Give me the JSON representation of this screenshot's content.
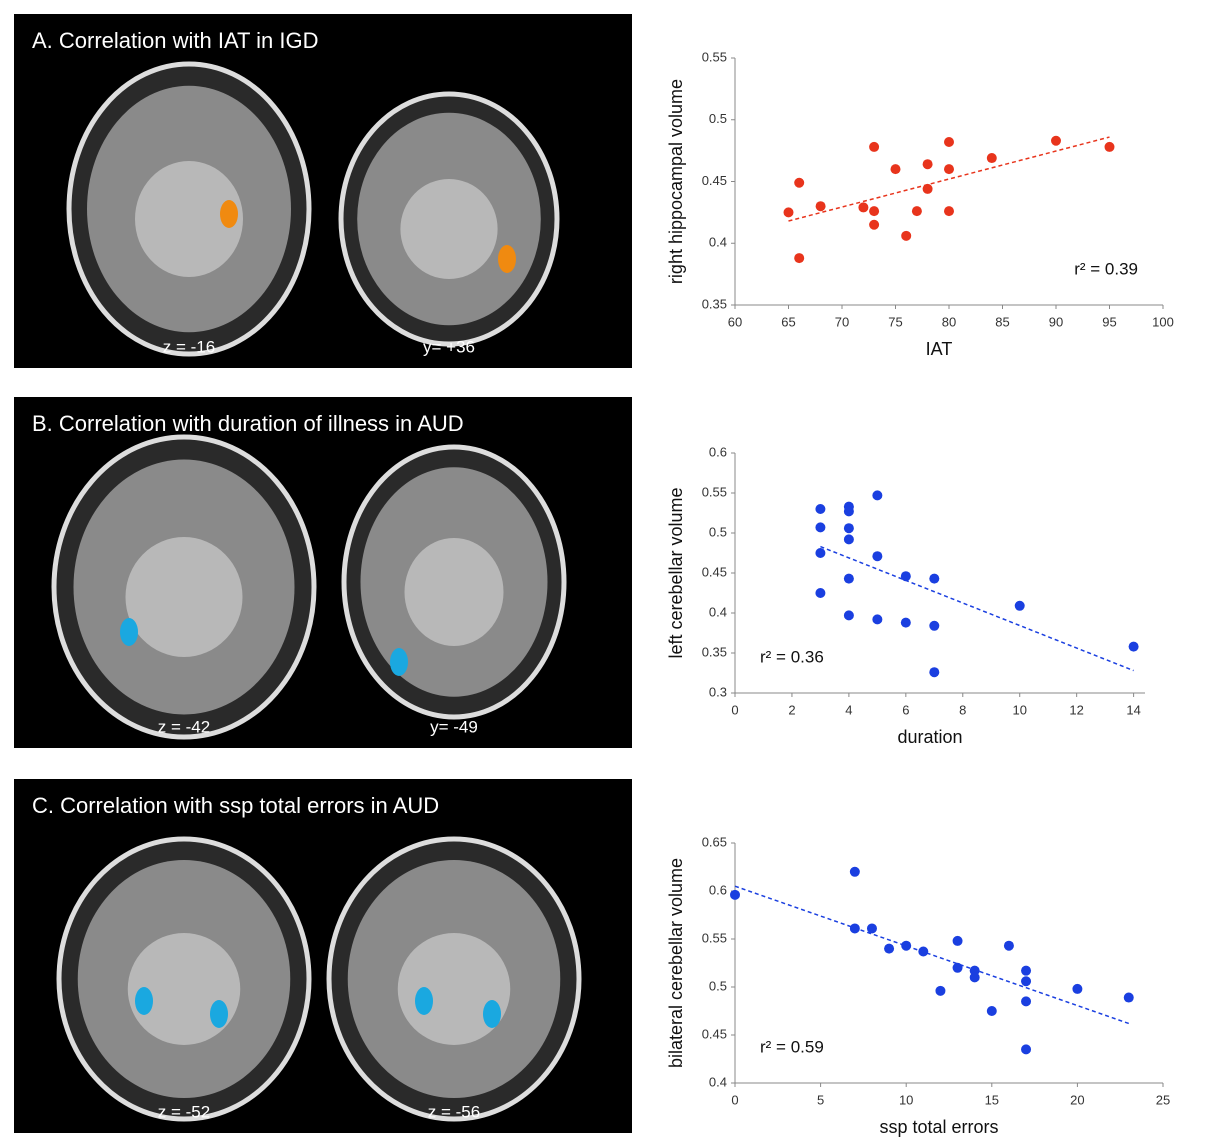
{
  "panels": [
    {
      "title": "A. Correlation with IAT in IGD",
      "labels": [
        "z = -16",
        "y= +36"
      ]
    },
    {
      "title": "B. Correlation with duration of illness in AUD",
      "labels": [
        "z = -42",
        "y= -49"
      ]
    },
    {
      "title": "C. Correlation with ssp total errors in AUD",
      "labels": [
        "z = -52",
        "z = -56"
      ]
    }
  ],
  "chart_data": [
    {
      "type": "scatter",
      "x_label": "IAT",
      "y_label": "right hippocampal volume",
      "annotation": "r² = 0.39",
      "annotation_corner": "lower right",
      "color": "#e8341c",
      "x": [
        65,
        66,
        66,
        68,
        72,
        73,
        73,
        73,
        75,
        76,
        77,
        78,
        78,
        80,
        80,
        80,
        84,
        90,
        95
      ],
      "values": [
        0.425,
        0.449,
        0.388,
        0.43,
        0.429,
        0.478,
        0.426,
        0.415,
        0.46,
        0.406,
        0.426,
        0.464,
        0.444,
        0.482,
        0.46,
        0.426,
        0.469,
        0.483,
        0.478
      ],
      "fit": {
        "x": [
          65,
          95
        ],
        "values": [
          0.418,
          0.486
        ]
      },
      "xlim": [
        60,
        100
      ],
      "xticks": [
        60,
        65,
        70,
        75,
        80,
        85,
        90,
        95,
        100
      ],
      "ylim": [
        0.35,
        0.55
      ],
      "yticks": [
        0.35,
        0.4,
        0.45,
        0.5,
        0.55
      ]
    },
    {
      "type": "scatter",
      "x_label": "duration",
      "y_label": "left cerebellar volume",
      "annotation": "r² = 0.36",
      "annotation_corner": "lower left",
      "color": "#1a3fe0",
      "x": [
        3,
        3,
        3,
        3,
        4,
        4,
        4,
        4,
        4,
        4,
        5,
        5,
        5,
        6,
        6,
        7,
        7,
        7,
        10,
        14
      ],
      "values": [
        0.53,
        0.507,
        0.475,
        0.425,
        0.533,
        0.527,
        0.506,
        0.492,
        0.443,
        0.397,
        0.547,
        0.471,
        0.392,
        0.446,
        0.388,
        0.443,
        0.384,
        0.326,
        0.409,
        0.358
      ],
      "fit": {
        "x": [
          3,
          14
        ],
        "values": [
          0.483,
          0.328
        ]
      },
      "xlim": [
        0,
        14.4
      ],
      "xticks": [
        0,
        2,
        4,
        6,
        8,
        10,
        12,
        14
      ],
      "ylim": [
        0.3,
        0.6
      ],
      "yticks": [
        0.3,
        0.35,
        0.4,
        0.45,
        0.5,
        0.55,
        0.6
      ]
    },
    {
      "type": "scatter",
      "x_label": "ssp total errors",
      "y_label": "bilateral cerebellar volume",
      "annotation": "r² = 0.59",
      "annotation_corner": "lower left",
      "color": "#1a3fe0",
      "x": [
        0,
        7,
        7,
        8,
        9,
        10,
        11,
        12,
        13,
        13,
        14,
        14,
        15,
        16,
        17,
        17,
        17,
        17,
        20,
        23
      ],
      "values": [
        0.596,
        0.62,
        0.561,
        0.561,
        0.54,
        0.543,
        0.537,
        0.496,
        0.548,
        0.52,
        0.517,
        0.51,
        0.475,
        0.543,
        0.517,
        0.506,
        0.485,
        0.435,
        0.498,
        0.489
      ],
      "fit": {
        "x": [
          0,
          23
        ],
        "values": [
          0.605,
          0.462
        ]
      },
      "xlim": [
        0,
        25
      ],
      "xticks": [
        0,
        5,
        10,
        15,
        20,
        25
      ],
      "ylim": [
        0.4,
        0.65
      ],
      "yticks": [
        0.4,
        0.45,
        0.5,
        0.55,
        0.6,
        0.65
      ]
    }
  ]
}
